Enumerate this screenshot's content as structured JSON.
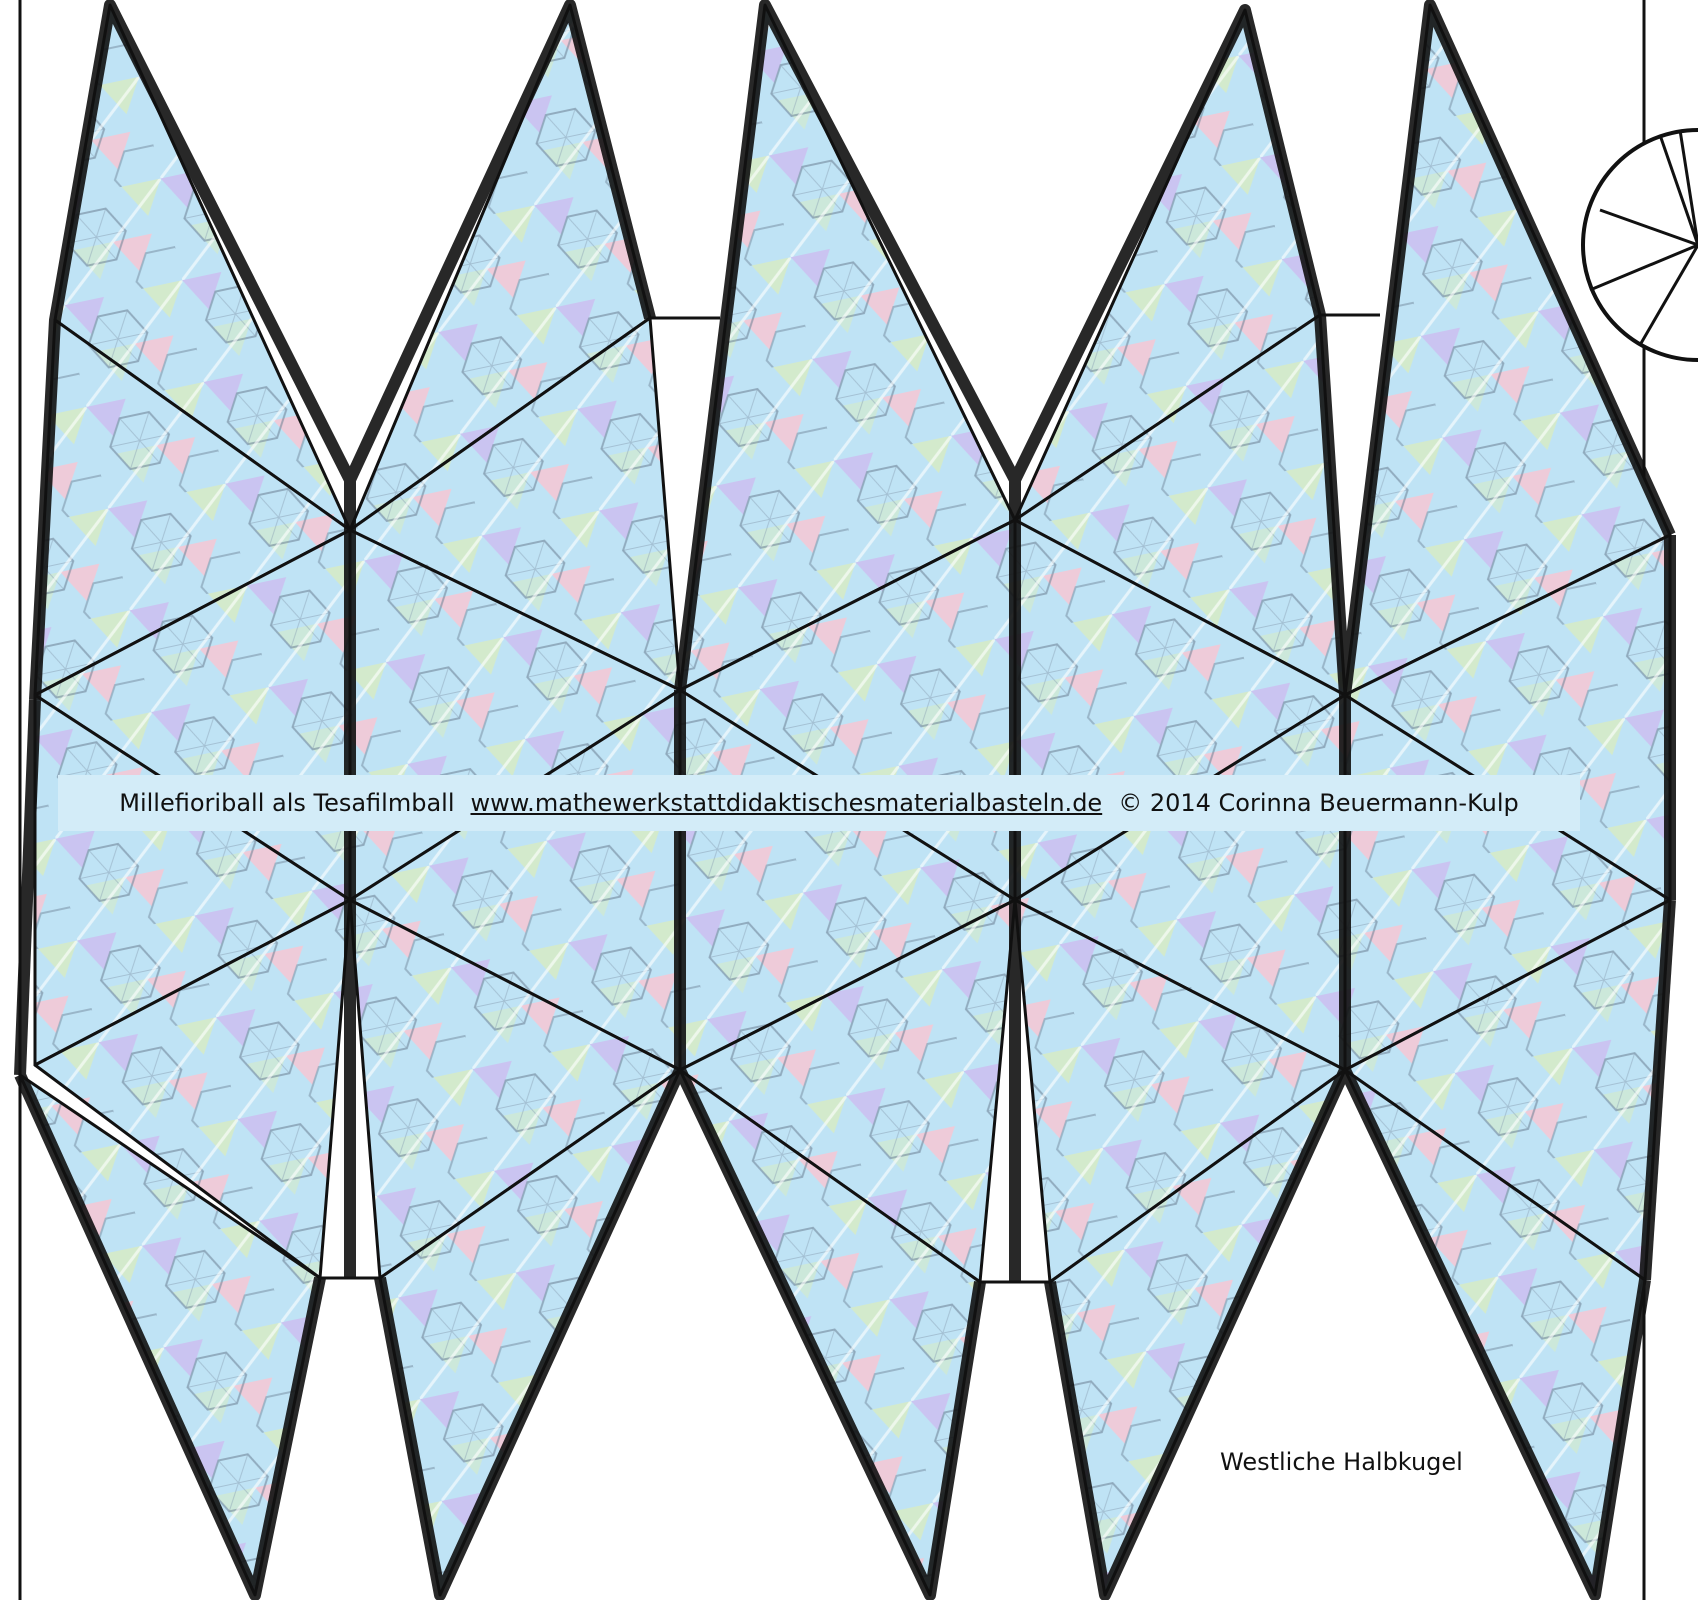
{
  "banner": {
    "title": "Millefioriball als Tesafilmball",
    "website": "www.mathewerkstattdidaktischesmaterialbasteln.de",
    "copyright": "© 2014 Corinna Beuermann-Kulp"
  },
  "caption": "Westliche Halbkugel",
  "colors": {
    "outline": "#111111",
    "background": "#ffffff",
    "banner": "#d3ecf8",
    "pattern_blue": "#bfe3f5",
    "pattern_pink": "#f3c9d6",
    "pattern_green": "#d5ebc8",
    "pattern_purple": "#cdbff0",
    "pattern_line": "#6b7f93"
  }
}
